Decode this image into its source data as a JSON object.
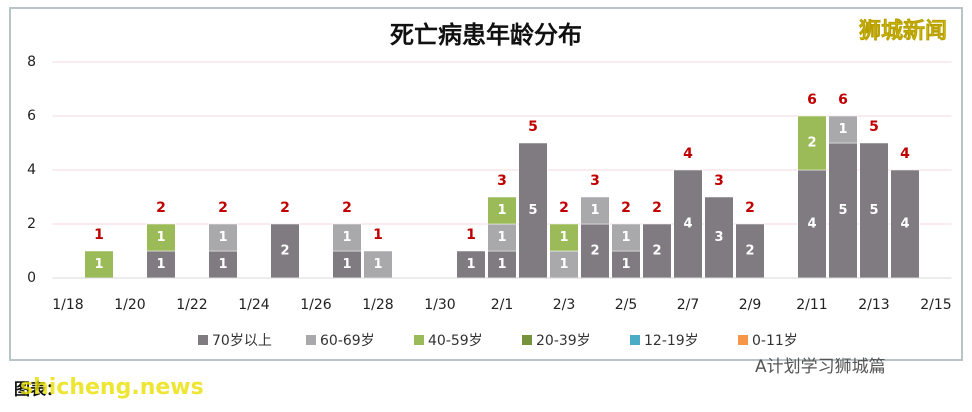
{
  "chart_data": {
    "type": "bar",
    "stacked": true,
    "title": "死亡病患年龄分布",
    "categories": [
      "1/18",
      null,
      "1/20",
      null,
      "1/22",
      null,
      "1/24",
      null,
      "1/26",
      null,
      "1/28",
      null,
      "1/30",
      null,
      "2/1",
      null,
      "2/3",
      null,
      "2/5",
      null,
      "2/7",
      null,
      "2/9",
      null,
      "2/11",
      null,
      "2/13",
      null,
      "2/15"
    ],
    "series": [
      {
        "name": "70岁以上",
        "color": "#7f7b80",
        "values": [
          null,
          null,
          null,
          1,
          null,
          1,
          null,
          2,
          null,
          1,
          null,
          null,
          null,
          1,
          1,
          5,
          null,
          2,
          1,
          2,
          4,
          3,
          2,
          null,
          4,
          5,
          5,
          4,
          null
        ]
      },
      {
        "name": "60-69岁",
        "color": "#a9a8ab",
        "values": [
          null,
          null,
          null,
          null,
          null,
          1,
          null,
          null,
          null,
          1,
          1,
          null,
          null,
          null,
          1,
          null,
          1,
          1,
          1,
          null,
          null,
          null,
          null,
          null,
          null,
          1,
          null,
          null,
          null
        ]
      },
      {
        "name": "40-59岁",
        "color": "#9bbb59",
        "values": [
          null,
          1,
          null,
          1,
          null,
          null,
          null,
          null,
          null,
          null,
          null,
          null,
          null,
          null,
          1,
          null,
          1,
          null,
          null,
          null,
          null,
          null,
          null,
          null,
          2,
          null,
          null,
          null,
          null
        ]
      },
      {
        "name": "20-39岁",
        "color": "#76923c",
        "values": [
          null,
          null,
          null,
          null,
          null,
          null,
          null,
          null,
          null,
          null,
          null,
          null,
          null,
          null,
          null,
          null,
          null,
          null,
          null,
          null,
          null,
          null,
          null,
          null,
          null,
          null,
          null,
          null,
          null
        ]
      },
      {
        "name": "12-19岁",
        "color": "#4bacc6",
        "values": [
          null,
          null,
          null,
          null,
          null,
          null,
          null,
          null,
          null,
          null,
          null,
          null,
          null,
          null,
          null,
          null,
          null,
          null,
          null,
          null,
          null,
          null,
          null,
          null,
          null,
          null,
          null,
          null,
          null
        ]
      },
      {
        "name": "0-11岁",
        "color": "#f79646",
        "values": [
          null,
          null,
          null,
          null,
          null,
          null,
          null,
          null,
          null,
          null,
          null,
          null,
          null,
          null,
          null,
          null,
          null,
          null,
          null,
          null,
          null,
          null,
          null,
          null,
          null,
          null,
          null,
          null,
          null
        ]
      }
    ],
    "totals": [
      null,
      1,
      null,
      2,
      null,
      2,
      null,
      2,
      null,
      2,
      1,
      null,
      null,
      1,
      3,
      5,
      2,
      3,
      2,
      2,
      4,
      3,
      2,
      null,
      6,
      6,
      5,
      4,
      null
    ],
    "ylim": [
      0,
      8
    ],
    "yticks": [
      0,
      2,
      4,
      6,
      8
    ],
    "grid": true,
    "legend": "bottom"
  },
  "watermark": "狮城新闻",
  "source_label": "图表：",
  "site": "shicheng.news",
  "wechat": "A计划学习狮城篇"
}
